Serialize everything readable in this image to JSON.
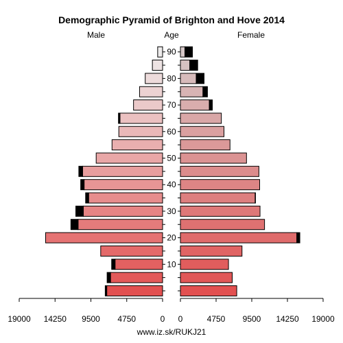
{
  "chart_data": {
    "type": "bar",
    "title": "Demographic Pyramid of Brighton and Hove 2014",
    "left_label": "Male",
    "center_label": "Age",
    "right_label": "Female",
    "footer": "www.iz.sk/RUKJ21",
    "x_max": 19000,
    "x_ticks_left": [
      "19000",
      "14250",
      "9500",
      "4750",
      "0"
    ],
    "x_ticks_right": [
      "0",
      "4750",
      "9500",
      "14250",
      "19000"
    ],
    "x_tick_values": [
      19000,
      14250,
      9500,
      4750,
      0
    ],
    "age_ticks": [
      10,
      20,
      30,
      40,
      50,
      60,
      70,
      80,
      90
    ],
    "age_groups": [
      "0-4",
      "5-9",
      "10-14",
      "15-19",
      "20-24",
      "25-29",
      "30-34",
      "35-39",
      "40-44",
      "45-49",
      "50-54",
      "55-59",
      "60-64",
      "65-69",
      "70-74",
      "75-79",
      "80-84",
      "85-89",
      "90+"
    ],
    "group_ages": [
      0,
      5,
      10,
      15,
      20,
      25,
      30,
      35,
      40,
      45,
      50,
      55,
      60,
      65,
      70,
      75,
      80,
      85,
      90
    ],
    "series": [
      {
        "name": "Male",
        "values": [
          7400,
          6900,
          6300,
          8200,
          15500,
          11200,
          10500,
          9800,
          10400,
          10600,
          8800,
          6700,
          5800,
          5650,
          3850,
          3050,
          2300,
          1350,
          650
        ]
      },
      {
        "name": "Male excess",
        "values": [
          200,
          450,
          450,
          0,
          0,
          950,
          1000,
          400,
          450,
          500,
          0,
          0,
          0,
          200,
          0,
          0,
          0,
          0,
          0
        ]
      },
      {
        "name": "Female",
        "values": [
          7500,
          6900,
          6400,
          8200,
          15500,
          11200,
          10600,
          9950,
          10550,
          10450,
          8800,
          6600,
          5800,
          5450,
          3850,
          3000,
          2100,
          1250,
          600
        ]
      },
      {
        "name": "Female excess",
        "values": [
          0,
          0,
          0,
          0,
          400,
          0,
          0,
          50,
          0,
          0,
          0,
          0,
          0,
          0,
          400,
          600,
          1050,
          1050,
          1000
        ]
      }
    ]
  }
}
